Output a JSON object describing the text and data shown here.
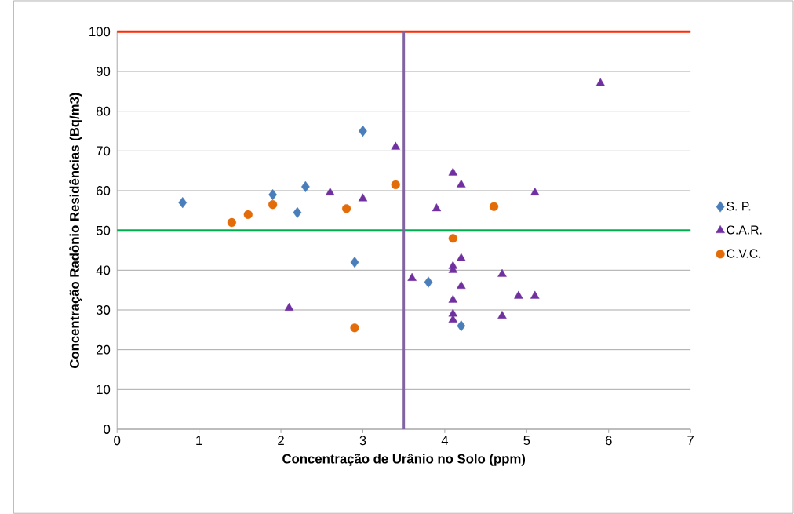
{
  "chart_data": {
    "type": "scatter",
    "xlabel": "Concentração de Urânio no Solo (ppm)",
    "ylabel": "Concentração Radônio Residências (Bq/m3)",
    "xlim": [
      0,
      7
    ],
    "xticks": [
      0,
      1,
      2,
      3,
      4,
      5,
      6,
      7
    ],
    "ylim": [
      0,
      100
    ],
    "yticks": [
      0,
      10,
      20,
      30,
      40,
      50,
      60,
      70,
      80,
      90,
      100
    ],
    "grid": "y",
    "legend": "right",
    "series": [
      {
        "name": "S. P.",
        "color": "#4a7ebb",
        "marker": "diamond",
        "x": [
          0.8,
          1.9,
          2.2,
          2.3,
          3.0,
          2.9,
          3.8,
          4.2
        ],
        "values": [
          57,
          59,
          54.5,
          61,
          75,
          42,
          37,
          26
        ]
      },
      {
        "name": "C.A.R.",
        "color": "#7030a0",
        "marker": "triangle",
        "x": [
          3.4,
          2.6,
          3.0,
          2.1,
          3.6,
          3.9,
          4.1,
          4.2,
          5.1,
          5.9,
          4.1,
          4.1,
          4.2,
          4.2,
          4.1,
          4.1,
          4.1,
          4.7,
          4.9,
          5.1,
          4.7
        ],
        "values": [
          71,
          59.5,
          58,
          30.5,
          38,
          55.5,
          64.5,
          61.5,
          59.5,
          87,
          41,
          40,
          43,
          36,
          32.5,
          29,
          27.5,
          39,
          33.5,
          33.5,
          28.5
        ]
      },
      {
        "name": "C.V.C.",
        "color": "#e36c09",
        "marker": "circle",
        "x": [
          1.4,
          1.6,
          1.9,
          2.8,
          3.4,
          2.9,
          4.1,
          4.6
        ],
        "values": [
          52,
          54,
          56.5,
          55.5,
          61.5,
          25.5,
          48,
          56
        ]
      }
    ],
    "ref_lines": [
      {
        "axis": "y",
        "value": 100,
        "color": "#ff2a00"
      },
      {
        "axis": "y",
        "value": 50,
        "color": "#00b050"
      },
      {
        "axis": "x",
        "value": 3.5,
        "color": "#8064a2"
      }
    ]
  }
}
